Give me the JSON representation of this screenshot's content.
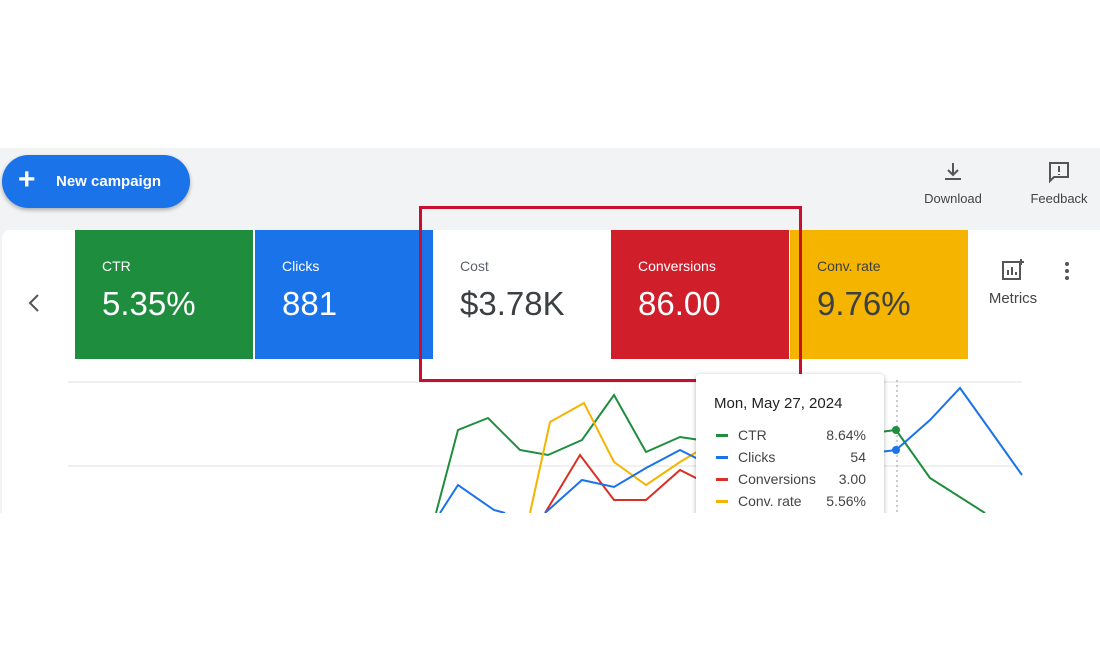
{
  "toolbar": {
    "new_campaign": "New campaign",
    "download": "Download",
    "feedback": "Feedback"
  },
  "scorecards": [
    {
      "label": "CTR",
      "value": "5.35%"
    },
    {
      "label": "Clicks",
      "value": "881"
    },
    {
      "label": "Cost",
      "value": "$3.78K"
    },
    {
      "label": "Conversions",
      "value": "86.00"
    },
    {
      "label": "Conv. rate",
      "value": "9.76%"
    }
  ],
  "metrics_button": "Metrics",
  "tooltip": {
    "date": "Mon, May 27, 2024",
    "rows": [
      {
        "name": "CTR",
        "value": "8.64%"
      },
      {
        "name": "Clicks",
        "value": "54"
      },
      {
        "name": "Conversions",
        "value": "3.00"
      },
      {
        "name": "Conv. rate",
        "value": "5.56%"
      }
    ]
  }
}
